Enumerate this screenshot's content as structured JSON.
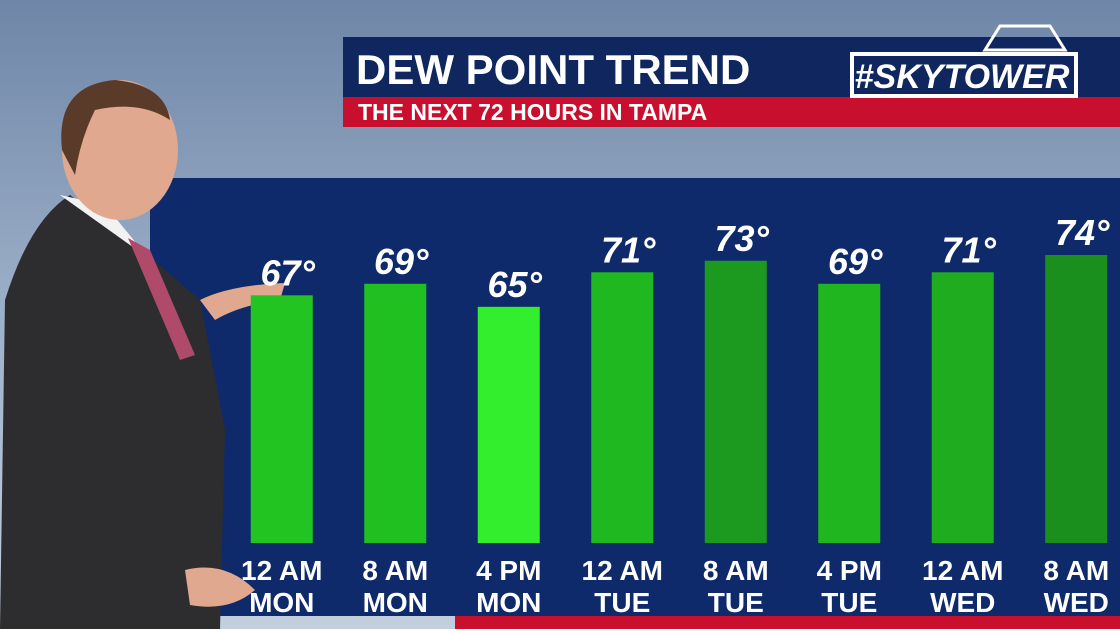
{
  "chart_data": {
    "type": "bar",
    "title": "DEW POINT TREND",
    "subtitle": "THE NEXT 72 HOURS IN TAMPA",
    "logo": "#SKYTOWER",
    "categories": [
      "12 AM",
      "8 AM",
      "4 PM",
      "12 AM",
      "8 AM",
      "4 PM",
      "12 AM",
      "8 AM"
    ],
    "category_days": [
      "MON",
      "MON",
      "MON",
      "TUE",
      "TUE",
      "TUE",
      "WED",
      "WED"
    ],
    "values": [
      67,
      69,
      65,
      71,
      73,
      69,
      71,
      74
    ],
    "value_labels": [
      "67°",
      "69°",
      "65°",
      "71°",
      "73°",
      "69°",
      "71°",
      "74°"
    ],
    "colors": [
      "#22c422",
      "#20c020",
      "#33ee2c",
      "#20b820",
      "#1b9a1f",
      "#20b620",
      "#1fad1f",
      "#1a8f1e"
    ],
    "ylim": [
      24,
      74
    ]
  }
}
